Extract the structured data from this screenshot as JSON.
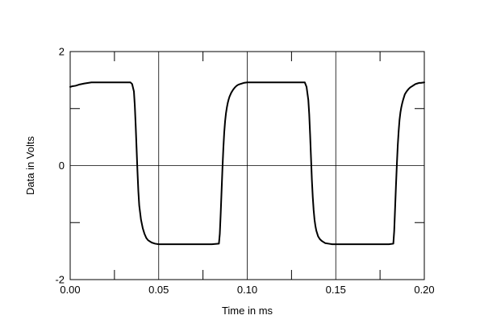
{
  "chart_data": {
    "type": "line",
    "title": "",
    "xlabel": "Time in ms",
    "ylabel": "Data in Volts",
    "xlim": [
      0.0,
      0.2
    ],
    "ylim": [
      -2,
      2
    ],
    "x_ticks": [
      0.0,
      0.05,
      0.1,
      0.15,
      0.2
    ],
    "x_tick_labels": [
      "0.00",
      "0.05",
      "0.10",
      "0.15",
      "0.20"
    ],
    "y_ticks": [
      -2,
      0,
      2
    ],
    "y_tick_labels": [
      "-2",
      "0",
      "2"
    ],
    "y_minor_ticks": [
      -1,
      1
    ],
    "x_minor_ticks": [
      0.025,
      0.075,
      0.125,
      0.175
    ],
    "grid": true,
    "legend": "none",
    "colors": {
      "line": "#000000",
      "axes": "#000000",
      "grid": "#000000",
      "background": "#ffffff"
    },
    "series": [
      {
        "x": [
          0.0,
          0.001,
          0.003,
          0.005,
          0.008,
          0.012,
          0.02,
          0.03,
          0.034,
          0.035,
          0.036,
          0.0365,
          0.037,
          0.0375,
          0.038,
          0.0385,
          0.039,
          0.04,
          0.041,
          0.042,
          0.043,
          0.044,
          0.046,
          0.048,
          0.05,
          0.055,
          0.06,
          0.07,
          0.08,
          0.084,
          0.0845,
          0.085,
          0.0855,
          0.086,
          0.0865,
          0.087,
          0.0875,
          0.088,
          0.0885,
          0.089,
          0.0895,
          0.09,
          0.091,
          0.092,
          0.093,
          0.094,
          0.095,
          0.096,
          0.098,
          0.1,
          0.105,
          0.11,
          0.115,
          0.12,
          0.125,
          0.13,
          0.1325,
          0.1335,
          0.1345,
          0.135,
          0.1355,
          0.136,
          0.1365,
          0.137,
          0.1375,
          0.138,
          0.1385,
          0.139,
          0.14,
          0.141,
          0.142,
          0.143,
          0.144,
          0.146,
          0.148,
          0.15,
          0.155,
          0.16,
          0.17,
          0.18,
          0.1825,
          0.183,
          0.1835,
          0.184,
          0.1845,
          0.185,
          0.1855,
          0.186,
          0.1865,
          0.187,
          0.1875,
          0.188,
          0.1885,
          0.189,
          0.19,
          0.191,
          0.192,
          0.193,
          0.194,
          0.195,
          0.196,
          0.197,
          0.198,
          0.2
        ],
        "y": [
          1.38,
          1.39,
          1.4,
          1.42,
          1.44,
          1.46,
          1.46,
          1.46,
          1.46,
          1.43,
          1.3,
          1.05,
          0.7,
          0.3,
          -0.1,
          -0.45,
          -0.7,
          -0.95,
          -1.1,
          -1.2,
          -1.27,
          -1.31,
          -1.35,
          -1.37,
          -1.38,
          -1.38,
          -1.38,
          -1.38,
          -1.38,
          -1.37,
          -1.2,
          -0.85,
          -0.45,
          -0.05,
          0.3,
          0.58,
          0.78,
          0.92,
          1.02,
          1.1,
          1.16,
          1.21,
          1.28,
          1.33,
          1.37,
          1.4,
          1.42,
          1.43,
          1.45,
          1.46,
          1.46,
          1.46,
          1.46,
          1.46,
          1.46,
          1.46,
          1.46,
          1.38,
          1.15,
          0.9,
          0.55,
          0.15,
          -0.25,
          -0.55,
          -0.78,
          -0.95,
          -1.06,
          -1.14,
          -1.24,
          -1.29,
          -1.32,
          -1.34,
          -1.36,
          -1.37,
          -1.38,
          -1.38,
          -1.38,
          -1.38,
          -1.38,
          -1.38,
          -1.37,
          -1.15,
          -0.75,
          -0.35,
          0.02,
          0.35,
          0.6,
          0.8,
          0.93,
          1.02,
          1.09,
          1.15,
          1.2,
          1.25,
          1.3,
          1.34,
          1.37,
          1.39,
          1.41,
          1.43,
          1.44,
          1.45,
          1.45,
          1.46
        ]
      }
    ]
  }
}
